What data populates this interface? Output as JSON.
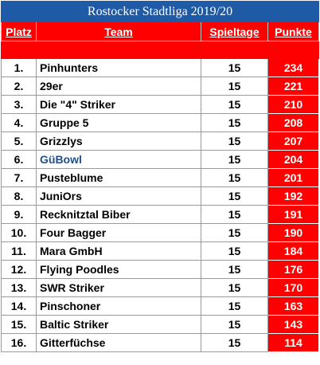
{
  "title": "Rostocker Stadtliga 2019/20",
  "headers": {
    "rank": "Platz",
    "team": "Team",
    "games": "Spieltage",
    "points": "Punkte"
  },
  "colors": {
    "title_bg": "#1f5aa6",
    "header_bg": "#ff0000",
    "points_bg": "#ff0000",
    "highlight_team": "#1f4f8a"
  },
  "rows": [
    {
      "rank": "1.",
      "team": "Pinhunters",
      "games": "15",
      "points": "234"
    },
    {
      "rank": "2.",
      "team": "29er",
      "games": "15",
      "points": "221"
    },
    {
      "rank": "3.",
      "team": "Die \"4\" Striker",
      "games": "15",
      "points": "210"
    },
    {
      "rank": "4.",
      "team": "Gruppe 5",
      "games": "15",
      "points": "208"
    },
    {
      "rank": "5.",
      "team": "Grizzlys",
      "games": "15",
      "points": "207"
    },
    {
      "rank": "6.",
      "team": "GüBowl",
      "games": "15",
      "points": "204",
      "highlight": true
    },
    {
      "rank": "7.",
      "team": "Pusteblume",
      "games": "15",
      "points": "201"
    },
    {
      "rank": "8.",
      "team": "JuniOrs",
      "games": "15",
      "points": "192"
    },
    {
      "rank": "9.",
      "team": "Recknitztal Biber",
      "games": "15",
      "points": "191"
    },
    {
      "rank": "10.",
      "team": "Four Bagger",
      "games": "15",
      "points": "190"
    },
    {
      "rank": "11.",
      "team": "Mara GmbH",
      "games": "15",
      "points": "184"
    },
    {
      "rank": "12.",
      "team": "Flying Poodles",
      "games": "15",
      "points": "176"
    },
    {
      "rank": "13.",
      "team": "SWR Striker",
      "games": "15",
      "points": "170"
    },
    {
      "rank": "14.",
      "team": "Pinschoner",
      "games": "15",
      "points": "163"
    },
    {
      "rank": "15.",
      "team": "Baltic Striker",
      "games": "15",
      "points": "143"
    },
    {
      "rank": "16.",
      "team": "Gitterfüchse",
      "games": "15",
      "points": "114"
    }
  ]
}
